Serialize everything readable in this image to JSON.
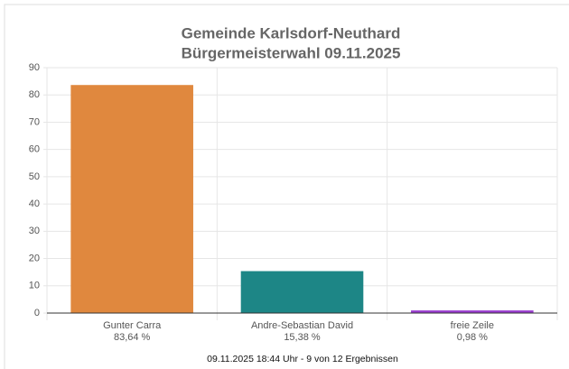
{
  "chart_data": {
    "type": "bar",
    "title": "Gemeinde Karlsdorf-Neuthard",
    "subtitle": "Bürgermeisterwahl 09.11.2025",
    "categories": [
      "Gunter Carra",
      "Andre-Sebastian David",
      "freie Zeile"
    ],
    "values": [
      83.64,
      15.38,
      0.98
    ],
    "value_labels": [
      "83,64 %",
      "15,38 %",
      "0,98 %"
    ],
    "colors": [
      "#e0883e",
      "#1d8686",
      "#9b3fcf"
    ],
    "ylim": [
      0,
      90
    ],
    "yticks": [
      0,
      10,
      20,
      30,
      40,
      50,
      60,
      70,
      80,
      90
    ],
    "grid": true,
    "footer": "09.11.2025 18:44 Uhr - 9 von 12 Ergebnissen"
  }
}
